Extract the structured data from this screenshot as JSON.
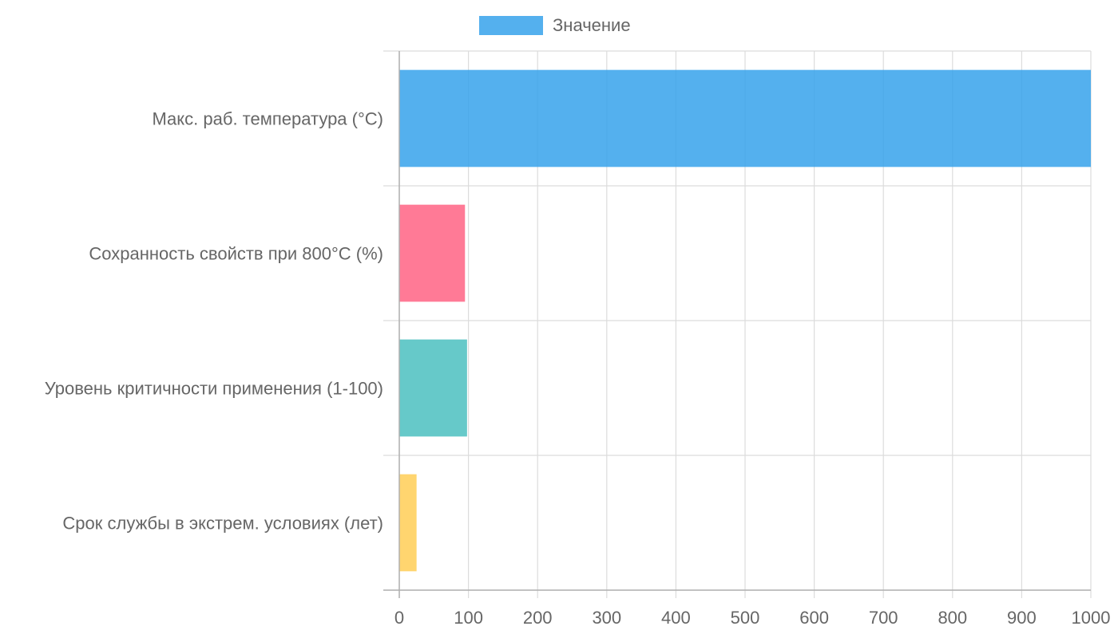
{
  "chart_data": {
    "type": "bar",
    "orientation": "horizontal",
    "categories": [
      "Макс. раб. температура (°C)",
      "Сохранность свойств при 800°C (%)",
      "Уровень критичности применения (1-100)",
      "Срок службы в экстрем. условиях (лет)"
    ],
    "series": [
      {
        "name": "Значение",
        "values": [
          1000,
          95,
          98,
          25
        ]
      }
    ],
    "bar_colors": [
      "#36A2EB",
      "#FF6384",
      "#4BC0C0",
      "#FFCE56"
    ],
    "legend_color": "#36A2EB",
    "xlim": [
      0,
      1000
    ],
    "xticks": [
      "0",
      "100",
      "200",
      "300",
      "400",
      "500",
      "600",
      "700",
      "800",
      "900",
      "1000"
    ],
    "grid": true,
    "legend_position": "top"
  }
}
